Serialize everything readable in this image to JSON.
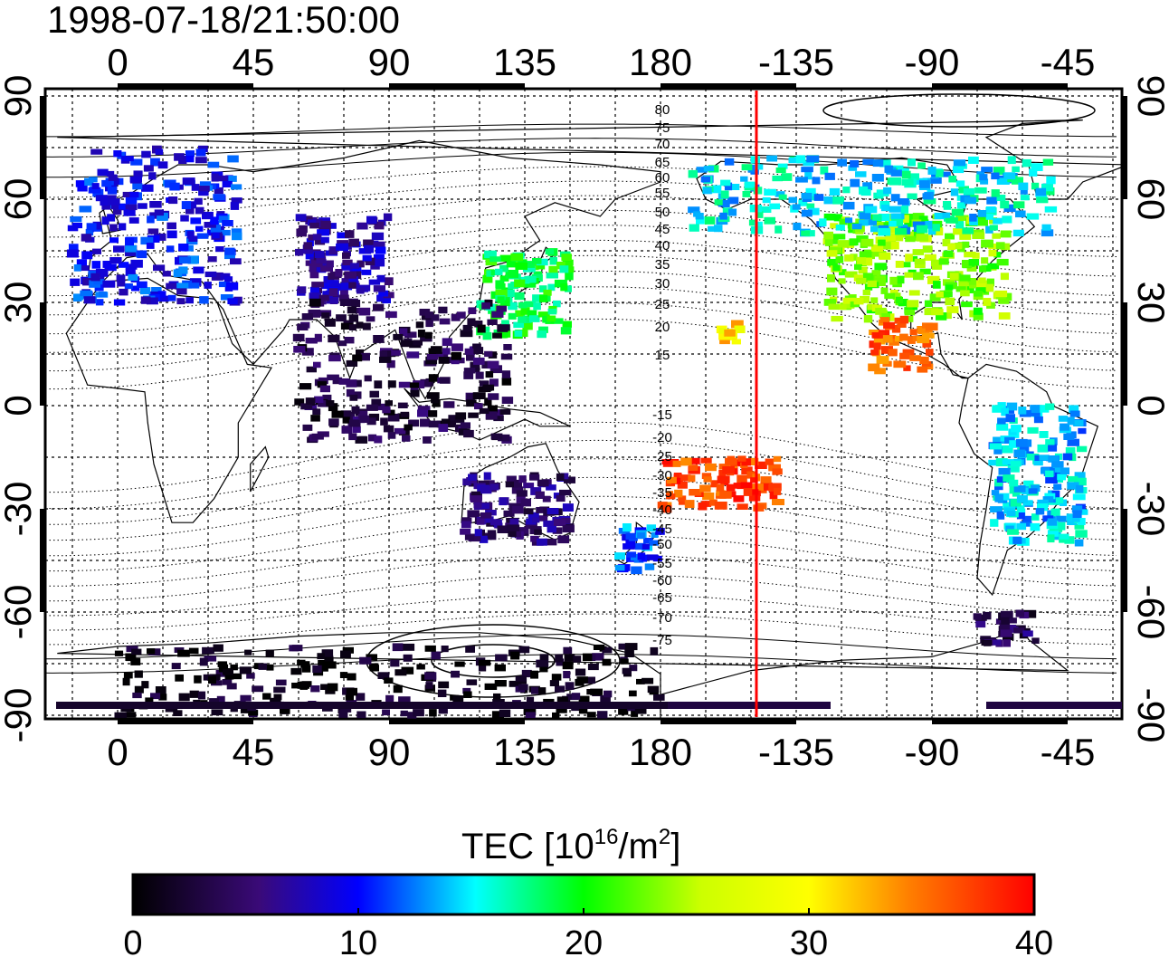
{
  "timestamp": "1998-07-18/21:50:00",
  "colorbar": {
    "title_prefix": "TEC  [10",
    "title_exp": "16",
    "title_mid": "/m",
    "title_exp2": "2",
    "title_suffix": "]",
    "ticks": [
      "0",
      "10",
      "20",
      "30",
      "40"
    ],
    "range": [
      0,
      40
    ],
    "colormap": [
      "#000000",
      "#3a0a78",
      "#0000ff",
      "#00ffff",
      "#00ff00",
      "#ffff00",
      "#ff8000",
      "#ff0000"
    ]
  },
  "map": {
    "projection": "equirectangular, 0° at left-center",
    "lon_ticks": [
      "0",
      "45",
      "90",
      "135",
      "180",
      "-135",
      "-90",
      "-45"
    ],
    "lat_ticks_left": [
      "90",
      "60",
      "30",
      "0",
      "-30",
      "-60",
      "-90"
    ],
    "lat_ticks_right": [
      "90",
      "60",
      "30",
      "0",
      "-30",
      "-60",
      "-90"
    ],
    "magnetic_latitude_labels": [
      "80",
      "75",
      "70",
      "65",
      "60",
      "55",
      "50",
      "45",
      "40",
      "35",
      "30",
      "25",
      "20",
      "15",
      "-15",
      "-20",
      "-25",
      "-30",
      "-35",
      "-40",
      "-45",
      "-50",
      "-55",
      "-60",
      "-65",
      "-70",
      "-75"
    ],
    "terminator_line_color": "#ff0000",
    "terminator_longitude": -150
  },
  "tec_regions": [
    {
      "name": "europe",
      "lon": [
        -15,
        40
      ],
      "lat": [
        30,
        75
      ],
      "tec": 10
    },
    {
      "name": "north-america",
      "lon": [
        -125,
        -65
      ],
      "lat": [
        25,
        55
      ],
      "tec": 23
    },
    {
      "name": "alaska-canada",
      "lon": [
        -170,
        -50
      ],
      "lat": [
        50,
        72
      ],
      "tec": 15
    },
    {
      "name": "japan-china",
      "lon": [
        120,
        150
      ],
      "lat": [
        20,
        45
      ],
      "tec": 19
    },
    {
      "name": "mexico",
      "lon": [
        -110,
        -90
      ],
      "lat": [
        10,
        25
      ],
      "tec": 36
    },
    {
      "name": "central-asia",
      "lon": [
        60,
        90
      ],
      "lat": [
        30,
        55
      ],
      "tec": 7
    },
    {
      "name": "south-asia",
      "lon": [
        60,
        130
      ],
      "lat": [
        -10,
        30
      ],
      "tec": 3
    },
    {
      "name": "australia",
      "lon": [
        115,
        150
      ],
      "lat": [
        -40,
        -20
      ],
      "tec": 5
    },
    {
      "name": "new-zealand",
      "lon": [
        165,
        180
      ],
      "lat": [
        -48,
        -35
      ],
      "tec": 12
    },
    {
      "name": "south-america",
      "lon": [
        -70,
        -40
      ],
      "lat": [
        -40,
        0
      ],
      "tec": 14
    },
    {
      "name": "antarctica-peninsula",
      "lon": [
        -75,
        -55
      ],
      "lat": [
        -70,
        -60
      ],
      "tec": 4
    },
    {
      "name": "antarctica",
      "lon": [
        0,
        180
      ],
      "lat": [
        -90,
        -70
      ],
      "tec": 1
    },
    {
      "name": "hawaii",
      "lon": [
        -160,
        -153
      ],
      "lat": [
        18,
        24
      ],
      "tec": 31
    },
    {
      "name": "pacific-south",
      "lon": [
        -180,
        -140
      ],
      "lat": [
        -30,
        -15
      ],
      "tec": 37
    }
  ]
}
